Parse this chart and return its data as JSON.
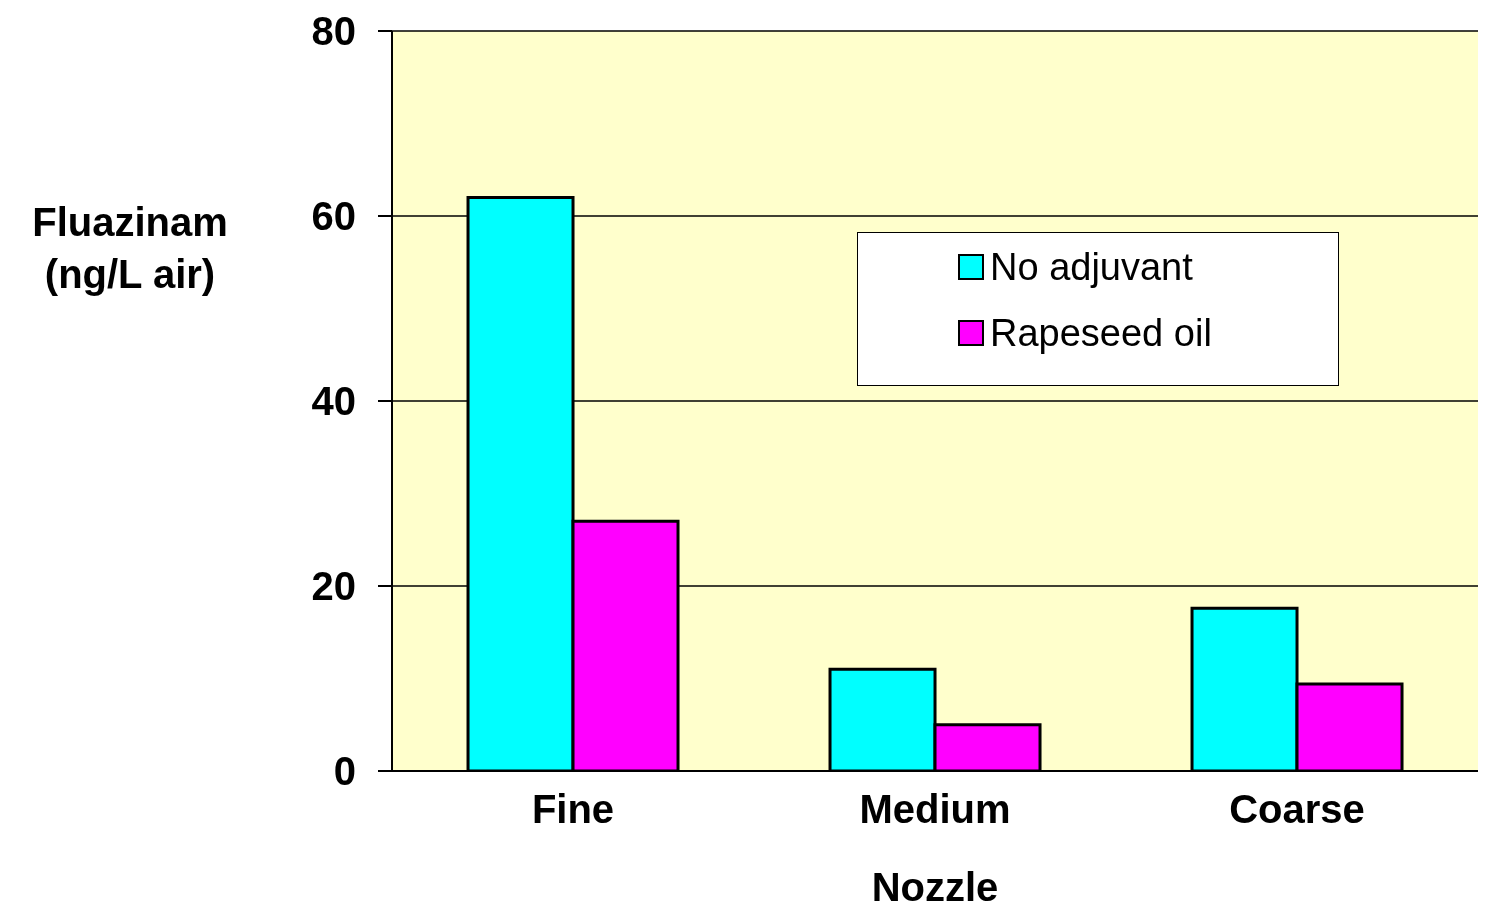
{
  "chart_data": {
    "type": "bar",
    "xlabel": "Nozzle",
    "ylabel": "Fluazinam (ng/L air)",
    "categories": [
      "Fine",
      "Medium",
      "Coarse"
    ],
    "series": [
      {
        "name": "No adjuvant",
        "color": "#00ffff",
        "values": [
          62,
          11,
          17.6
        ]
      },
      {
        "name": "Rapeseed oil",
        "color": "#ff00ff",
        "values": [
          27,
          5,
          9.4
        ]
      }
    ],
    "ylim": [
      0,
      80
    ],
    "yticks": [
      0,
      20,
      40,
      60,
      80
    ],
    "grid": "y",
    "legend": "top right"
  }
}
